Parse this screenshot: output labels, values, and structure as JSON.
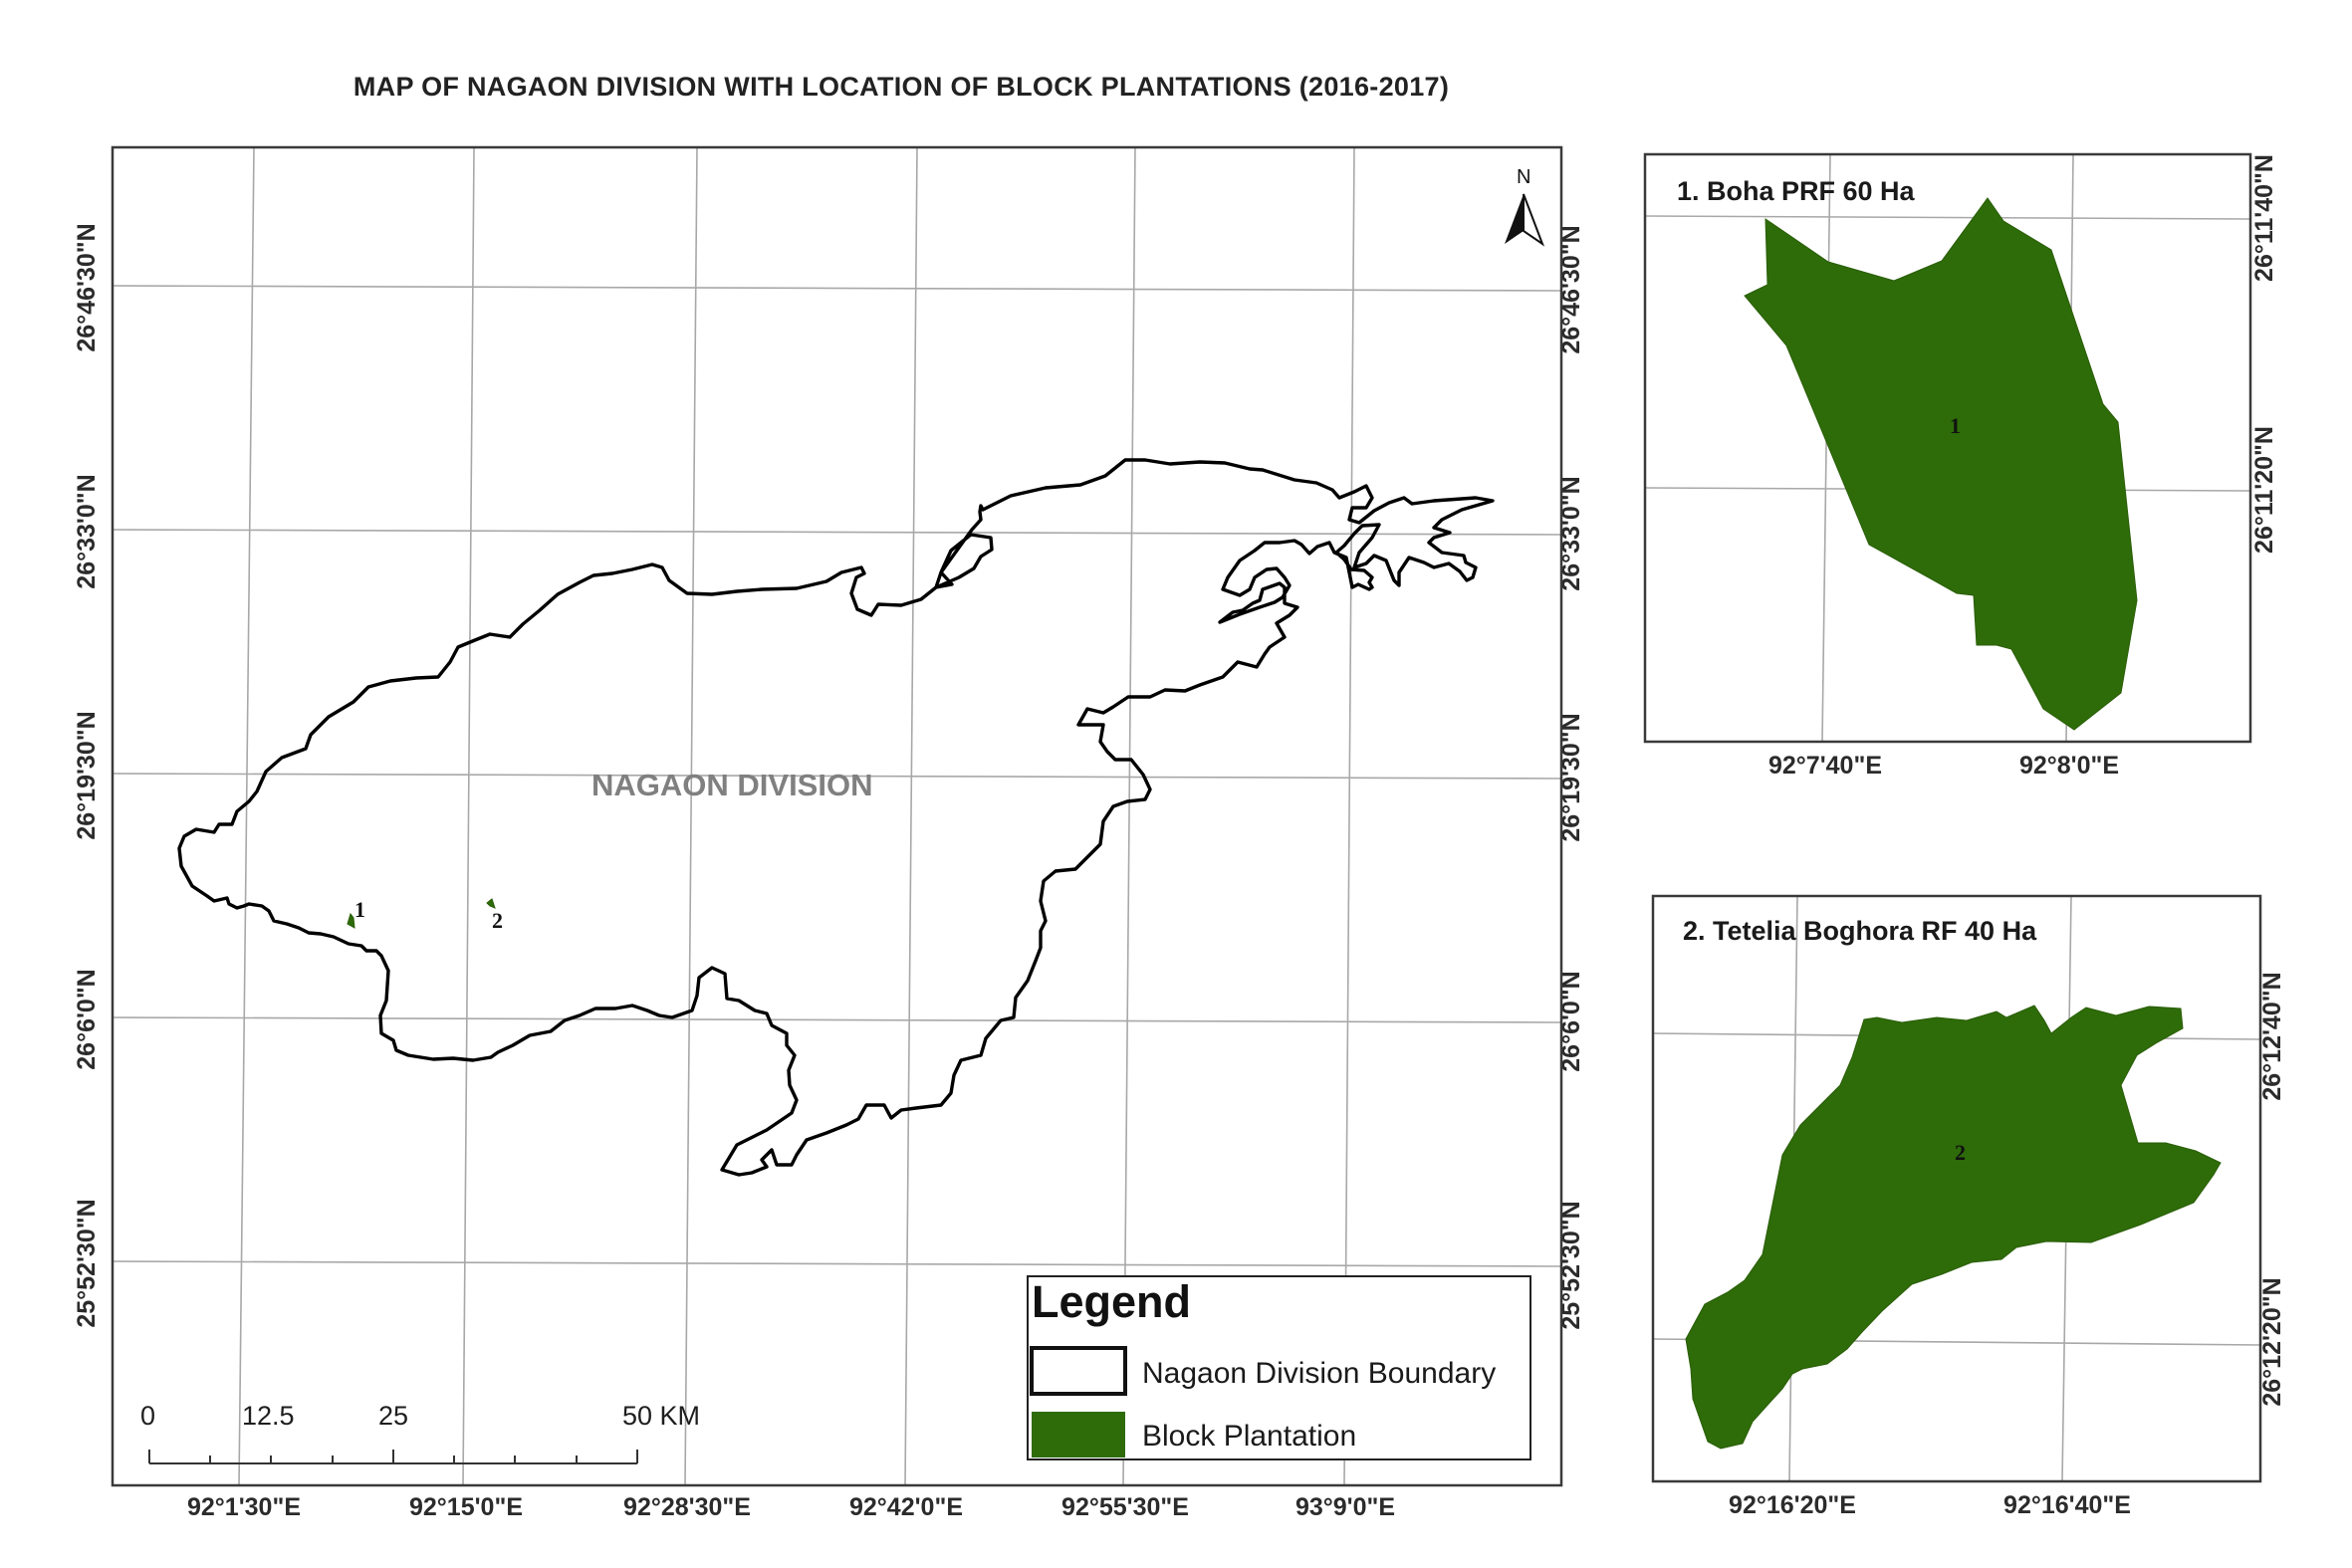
{
  "title": "MAP OF NAGAON DIVISION WITH LOCATION OF BLOCK PLANTATIONS (2016-2017)",
  "main_map": {
    "division_label": "NAGAON DIVISION",
    "latitude_labels": [
      "26°46'30\"N",
      "26°33'0\"N",
      "26°19'30\"N",
      "26°6'0\"N",
      "25°52'30\"N"
    ],
    "longitude_labels": [
      "92°1'30\"E",
      "92°15'0\"E",
      "92°28'30\"E",
      "92°42'0\"E",
      "92°55'30\"E",
      "93°9'0\"E"
    ],
    "north_arrow_letter": "N",
    "plantation_markers": [
      "1",
      "2"
    ],
    "boundary_color": "#000000",
    "plantation_color": "#2e6b09"
  },
  "scale_bar": {
    "labels": [
      "0",
      "12.5",
      "25",
      "50 KM"
    ]
  },
  "legend": {
    "title": "Legend",
    "items": [
      {
        "label": "Nagaon Division Boundary",
        "symbol": "outline"
      },
      {
        "label": "Block Plantation",
        "symbol": "green-fill"
      }
    ]
  },
  "inset1": {
    "title": "1. Boha PRF 60 Ha",
    "marker": "1",
    "latitude_labels": [
      "26°11'40\"N",
      "26°11'20\"N"
    ],
    "longitude_labels": [
      "92°7'40\"E",
      "92°8'0\"E"
    ]
  },
  "inset2": {
    "title": "2. Tetelia Boghora RF 40 Ha",
    "marker": "2",
    "latitude_labels": [
      "26°12'40\"N",
      "26°12'20\"N"
    ],
    "longitude_labels": [
      "92°16'20\"E",
      "92°16'40\"E"
    ]
  }
}
